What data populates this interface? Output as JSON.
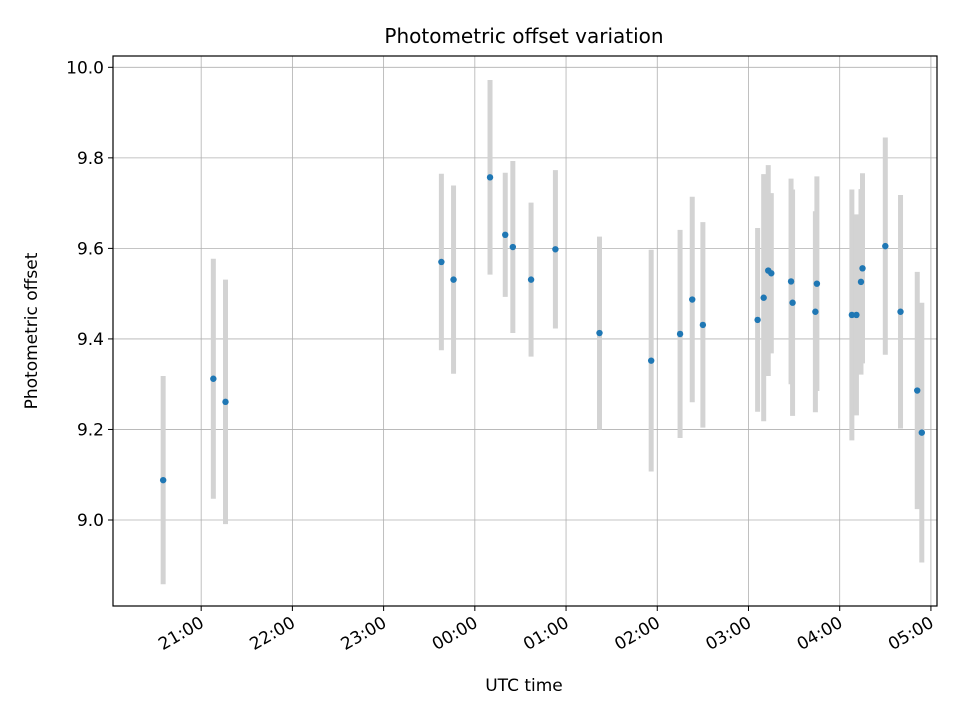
{
  "chart_data": {
    "type": "scatter",
    "title": "Photometric offset variation",
    "xlabel": "UTC time",
    "ylabel": "Photometric offset",
    "grid": true,
    "x_ticks": [
      "21:00",
      "22:00",
      "23:00",
      "00:00",
      "01:00",
      "02:00",
      "03:00",
      "04:00",
      "05:00"
    ],
    "y_ticks": [
      "9.0",
      "9.2",
      "9.4",
      "9.6",
      "9.8",
      "10.0"
    ],
    "ylim": [
      8.81,
      10.025
    ],
    "xlim_minutes_from_21h": [
      -58,
      484
    ],
    "colors": {
      "point": "#1f77b4",
      "errorbar": "#d3d3d3"
    },
    "points": [
      {
        "time": "20:35",
        "y": 9.088,
        "yerr": 0.23
      },
      {
        "time": "21:08",
        "y": 9.312,
        "yerr": 0.265
      },
      {
        "time": "21:16",
        "y": 9.261,
        "yerr": 0.27
      },
      {
        "time": "23:38",
        "y": 9.57,
        "yerr": 0.195
      },
      {
        "time": "23:46",
        "y": 9.531,
        "yerr": 0.208
      },
      {
        "time": "00:10",
        "y": 9.757,
        "yerr": 0.215
      },
      {
        "time": "00:20",
        "y": 9.63,
        "yerr": 0.137
      },
      {
        "time": "00:25",
        "y": 9.603,
        "yerr": 0.19
      },
      {
        "time": "00:37",
        "y": 9.531,
        "yerr": 0.17
      },
      {
        "time": "00:53",
        "y": 9.598,
        "yerr": 0.175
      },
      {
        "time": "01:22",
        "y": 9.413,
        "yerr": 0.213
      },
      {
        "time": "01:56",
        "y": 9.352,
        "yerr": 0.245
      },
      {
        "time": "02:15",
        "y": 9.411,
        "yerr": 0.23
      },
      {
        "time": "02:23",
        "y": 9.487,
        "yerr": 0.227
      },
      {
        "time": "02:30",
        "y": 9.431,
        "yerr": 0.227
      },
      {
        "time": "03:06",
        "y": 9.442,
        "yerr": 0.203
      },
      {
        "time": "03:10",
        "y": 9.491,
        "yerr": 0.273
      },
      {
        "time": "03:13",
        "y": 9.551,
        "yerr": 0.233
      },
      {
        "time": "03:15",
        "y": 9.545,
        "yerr": 0.177
      },
      {
        "time": "03:28",
        "y": 9.527,
        "yerr": 0.227
      },
      {
        "time": "03:29",
        "y": 9.48,
        "yerr": 0.25
      },
      {
        "time": "03:44",
        "y": 9.46,
        "yerr": 0.222
      },
      {
        "time": "03:45",
        "y": 9.522,
        "yerr": 0.237
      },
      {
        "time": "04:08",
        "y": 9.453,
        "yerr": 0.277
      },
      {
        "time": "04:11",
        "y": 9.453,
        "yerr": 0.222
      },
      {
        "time": "04:14",
        "y": 9.526,
        "yerr": 0.205
      },
      {
        "time": "04:15",
        "y": 9.556,
        "yerr": 0.21
      },
      {
        "time": "04:30",
        "y": 9.605,
        "yerr": 0.24
      },
      {
        "time": "04:40",
        "y": 9.46,
        "yerr": 0.258
      },
      {
        "time": "04:51",
        "y": 9.286,
        "yerr": 0.262
      },
      {
        "time": "04:54",
        "y": 9.193,
        "yerr": 0.287
      }
    ]
  }
}
